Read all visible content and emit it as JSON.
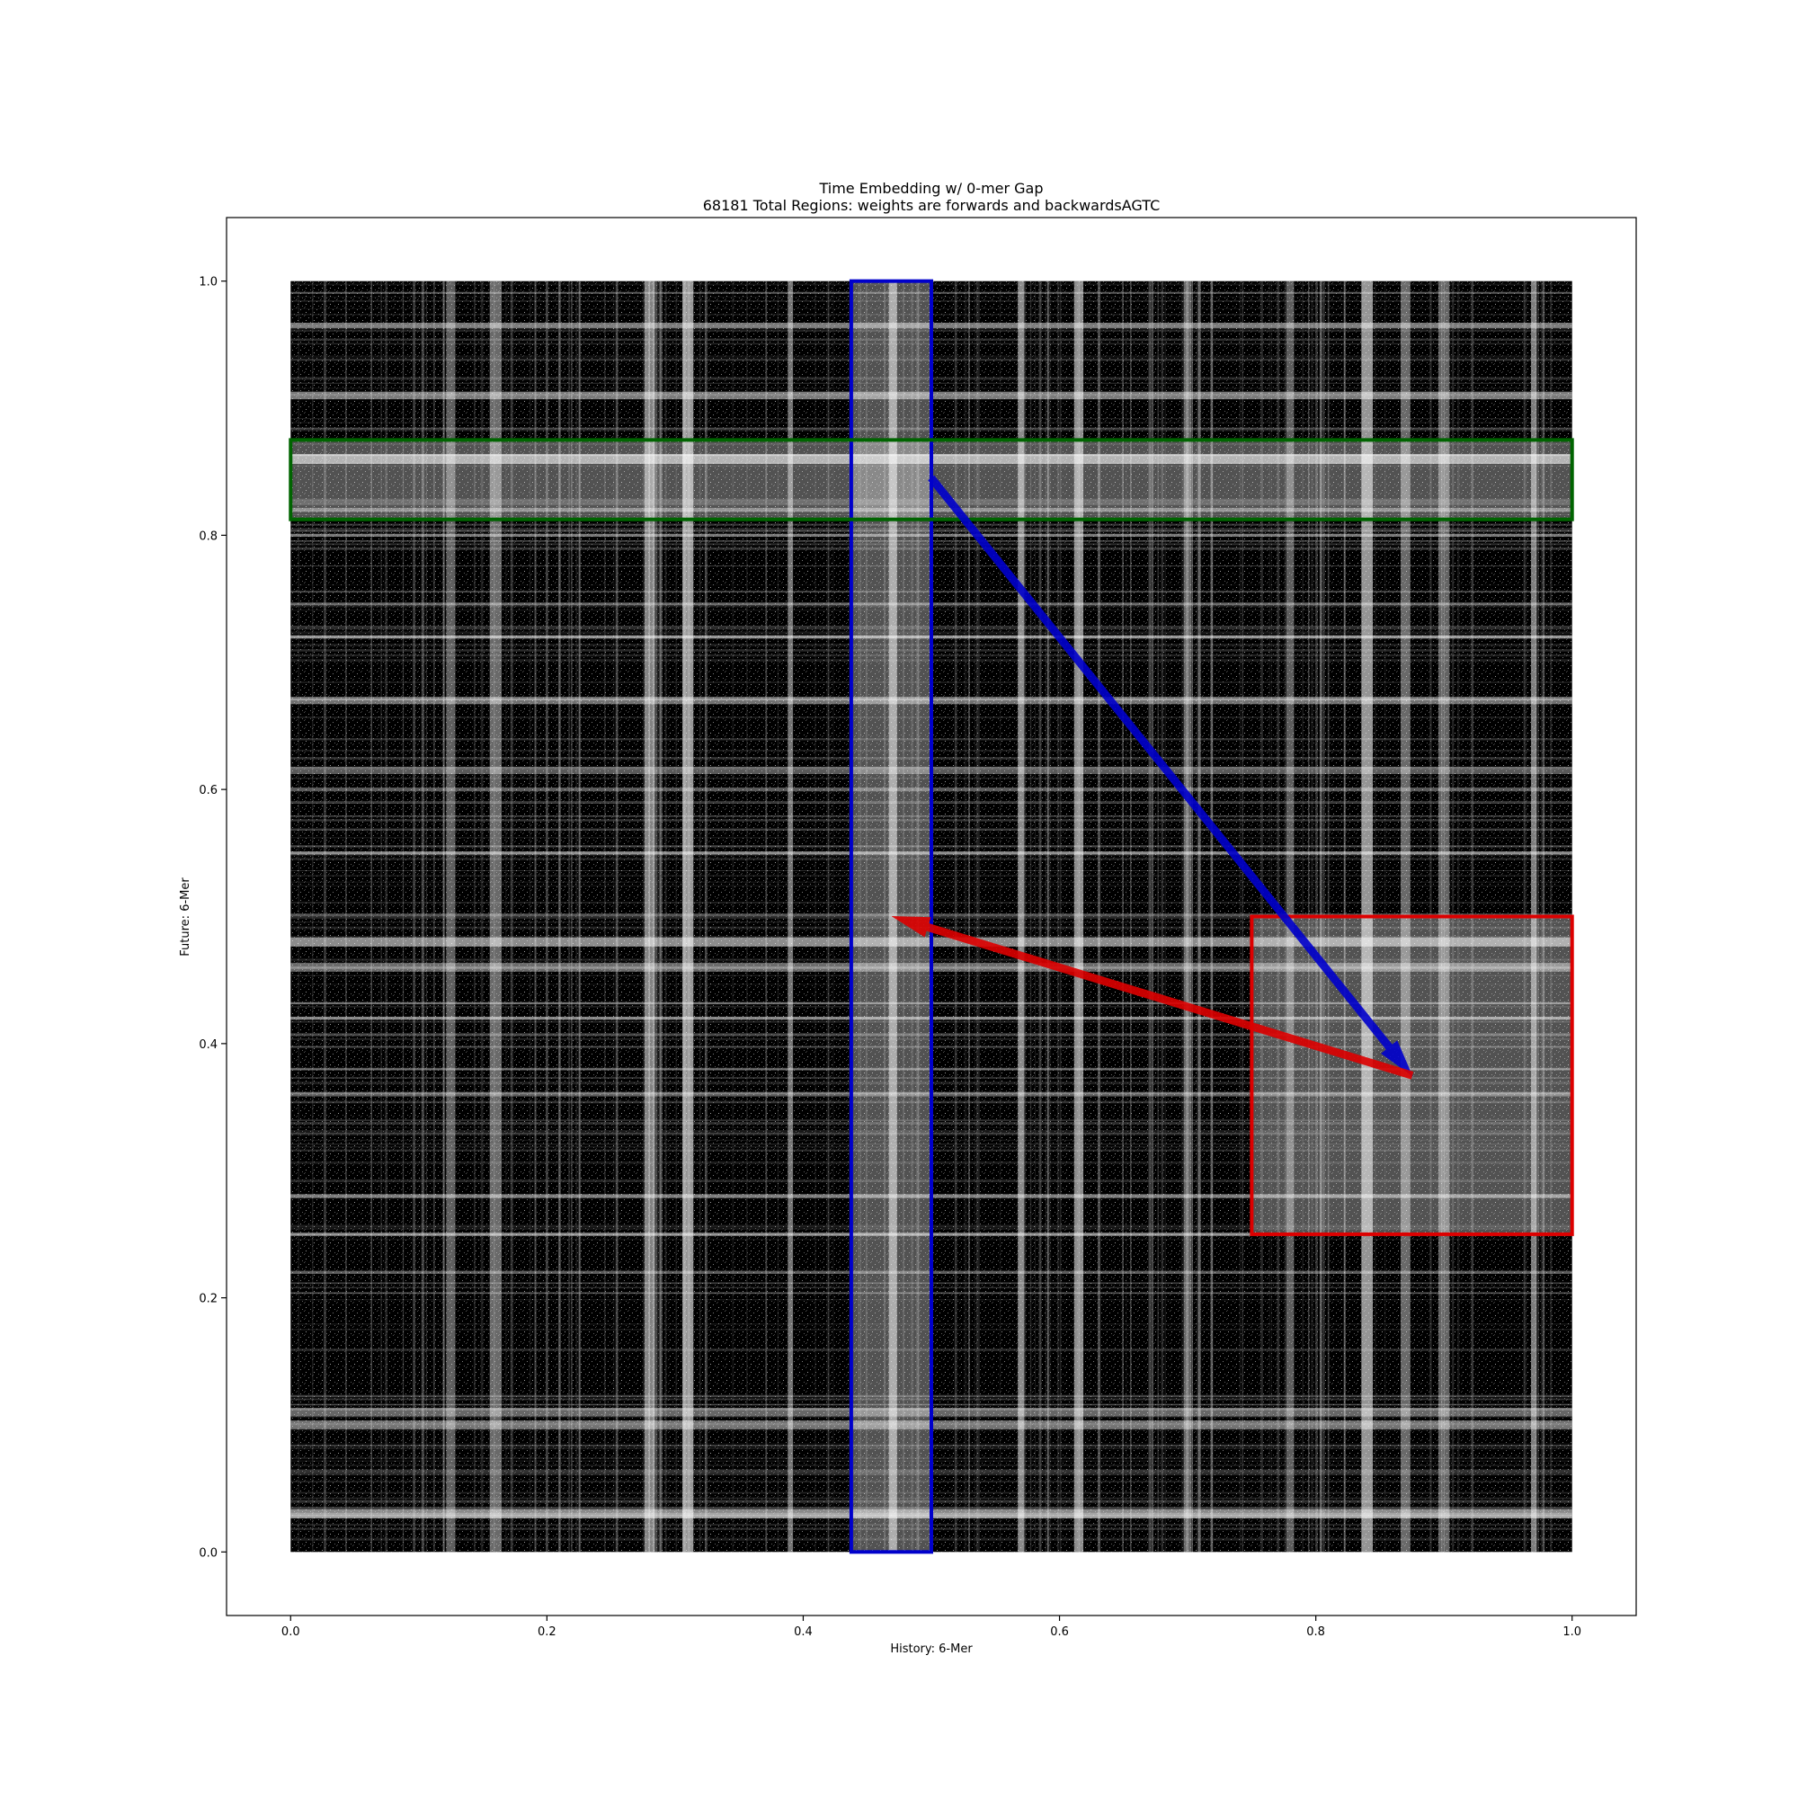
{
  "chart_data": {
    "type": "heatmap",
    "title": "Time Embedding w/ 0-mer Gap",
    "subtitle": "68181 Total Regions: weights are forwards and backwardsAGTC",
    "xlabel": "History: 6-Mer",
    "ylabel": "Future: 6-Mer",
    "xlim": [
      -0.05,
      1.05
    ],
    "ylim": [
      -0.05,
      1.05
    ],
    "x_ticks": [
      0.0,
      0.2,
      0.4,
      0.6,
      0.8,
      1.0
    ],
    "y_ticks": [
      0.0,
      0.2,
      0.4,
      0.6,
      0.8,
      1.0
    ],
    "x_tick_labels": [
      "0.0",
      "0.2",
      "0.4",
      "0.6",
      "0.8",
      "1.0"
    ],
    "y_tick_labels": [
      "0.0",
      "0.2",
      "0.4",
      "0.6",
      "0.8",
      "1.0"
    ],
    "grid": false,
    "colormap": "grayscale (black = dense, white = sparse)",
    "data_extent": {
      "x": [
        0.0,
        1.0
      ],
      "y": [
        0.0,
        1.0
      ]
    },
    "bright_columns_x": [
      0.125,
      0.16,
      0.28,
      0.31,
      0.39,
      0.47,
      0.57,
      0.615,
      0.7,
      0.78,
      0.84,
      0.87,
      0.9,
      0.97
    ],
    "bright_rows_y": [
      0.03,
      0.1,
      0.11,
      0.22,
      0.25,
      0.28,
      0.36,
      0.42,
      0.46,
      0.48,
      0.55,
      0.6,
      0.615,
      0.67,
      0.72,
      0.8,
      0.82,
      0.86,
      0.91,
      0.965
    ],
    "highlight_regions": [
      {
        "name": "blue-column",
        "color": "#0000cc",
        "x": [
          0.4375,
          0.5
        ],
        "y": [
          0.0,
          1.0
        ]
      },
      {
        "name": "green-row",
        "color": "#006400",
        "x": [
          0.0,
          1.0
        ],
        "y": [
          0.8125,
          0.875
        ]
      },
      {
        "name": "red-square",
        "color": "#dd0000",
        "x": [
          0.75,
          1.0
        ],
        "y": [
          0.25,
          0.5
        ]
      }
    ],
    "arrows": [
      {
        "name": "blue-arrow",
        "color": "#0000cc",
        "from": [
          0.5,
          0.845
        ],
        "to": [
          0.875,
          0.375
        ]
      },
      {
        "name": "red-arrow",
        "color": "#dd0000",
        "from": [
          0.875,
          0.375
        ],
        "to": [
          0.47,
          0.5
        ]
      }
    ]
  }
}
